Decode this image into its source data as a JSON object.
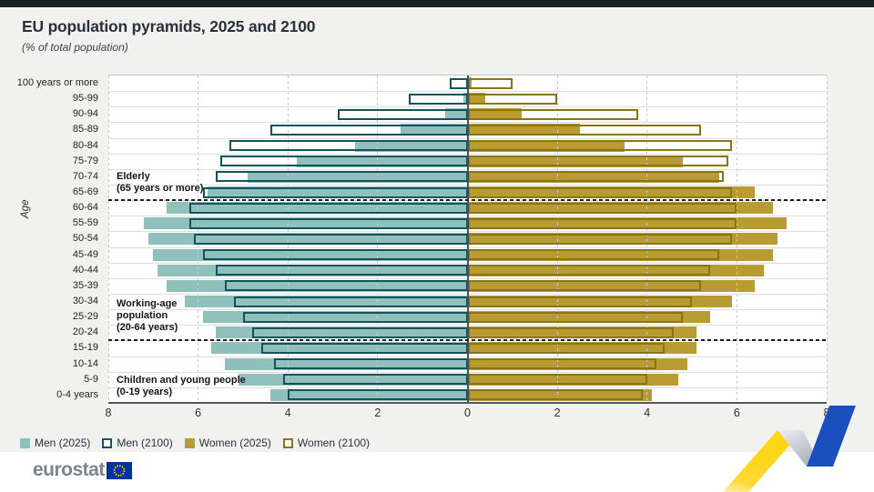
{
  "page": {
    "title": "EU population pyramids, 2025 and 2100",
    "subtitle": "(% of total population)",
    "y_axis_label": "Age"
  },
  "footer": {
    "brand": "eurostat",
    "logo_icon": "eu-flag-icon"
  },
  "colors": {
    "card_bg": "#f1f1ef",
    "top_strip": "#1a1e25",
    "men_2025_fill": "#8fc0bc",
    "men_2100_border": "#12545d",
    "women_2025_fill": "#b89c33",
    "women_2100_border": "#8a7414",
    "center_line": "#4d4d4d",
    "deco_blue": "#1c4fbe",
    "deco_yellow": "#ffd617",
    "eu_flag_blue": "#003399",
    "eu_flag_stars": "#ffcc00"
  },
  "legend": [
    {
      "label": "Men (2025)",
      "swatch": "fill",
      "color": "#8fc0bc"
    },
    {
      "label": "Men (2100)",
      "swatch": "outline",
      "color": "#12545d"
    },
    {
      "label": "Women (2025)",
      "swatch": "fill",
      "color": "#b89c33"
    },
    {
      "label": "Women (2100)",
      "swatch": "outline",
      "color": "#8a7414"
    }
  ],
  "annotations": [
    {
      "lines": [
        "Elderly",
        "(65 years or more)"
      ],
      "top_row": 6
    },
    {
      "lines": [
        "Working-age",
        "population",
        "(20-64 years)"
      ],
      "top_row": 14.2
    },
    {
      "lines": [
        "Children and young people",
        "(0-19 years)"
      ],
      "top_row": 19.1
    }
  ],
  "chart_data": {
    "type": "bar",
    "subtype": "population-pyramid",
    "title": "EU population pyramids, 2025 and 2100",
    "unit": "% of total population",
    "xlabel": "",
    "ylabel": "Age",
    "x_ticks": [
      {
        "label": "8",
        "v": -8
      },
      {
        "label": "6",
        "v": -6
      },
      {
        "label": "4",
        "v": -4
      },
      {
        "label": "2",
        "v": -2
      },
      {
        "label": "0",
        "v": 0
      },
      {
        "label": "2",
        "v": 2
      },
      {
        "label": "4",
        "v": 4
      },
      {
        "label": "6",
        "v": 6
      },
      {
        "label": "8",
        "v": 8
      }
    ],
    "xlim_each_side": [
      0,
      8
    ],
    "gridlines": [
      2,
      4,
      6,
      8
    ],
    "boundary_rows_after": [
      7,
      16
    ],
    "age_groups": [
      "100 years or more",
      "95-99",
      "90-94",
      "85-89",
      "80-84",
      "75-79",
      "70-74",
      "65-69",
      "60-64",
      "55-59",
      "50-54",
      "45-49",
      "40-44",
      "35-39",
      "30-34",
      "25-29",
      "20-24",
      "15-19",
      "10-14",
      "5-9",
      "0-4 years"
    ],
    "series": [
      {
        "name": "Men (2025)",
        "side": "left",
        "style": "fill",
        "color": "#8fc0bc",
        "values": [
          0.0,
          0.1,
          0.5,
          1.5,
          2.5,
          3.8,
          4.9,
          5.8,
          6.7,
          7.2,
          7.1,
          7.0,
          6.9,
          6.7,
          6.3,
          5.9,
          5.6,
          5.7,
          5.4,
          5.1,
          4.4
        ]
      },
      {
        "name": "Men (2100)",
        "side": "left",
        "style": "outline",
        "color": "#12545d",
        "values": [
          0.4,
          1.3,
          2.9,
          4.4,
          5.3,
          5.5,
          5.6,
          5.9,
          6.2,
          6.2,
          6.1,
          5.9,
          5.6,
          5.4,
          5.2,
          5.0,
          4.8,
          4.6,
          4.3,
          4.1,
          4.0
        ]
      },
      {
        "name": "Women (2025)",
        "side": "right",
        "style": "fill",
        "color": "#b89c33",
        "values": [
          0.1,
          0.4,
          1.2,
          2.5,
          3.5,
          4.8,
          5.6,
          6.4,
          6.8,
          7.1,
          6.9,
          6.8,
          6.6,
          6.4,
          5.9,
          5.4,
          5.1,
          5.1,
          4.9,
          4.7,
          4.1
        ]
      },
      {
        "name": "Women (2100)",
        "side": "right",
        "style": "outline",
        "color": "#8a7414",
        "values": [
          1.0,
          2.0,
          3.8,
          5.2,
          5.9,
          5.8,
          5.7,
          5.9,
          6.0,
          6.0,
          5.9,
          5.6,
          5.4,
          5.2,
          5.0,
          4.8,
          4.6,
          4.4,
          4.2,
          4.0,
          3.9
        ]
      }
    ],
    "legend_position": "bottom-left"
  }
}
